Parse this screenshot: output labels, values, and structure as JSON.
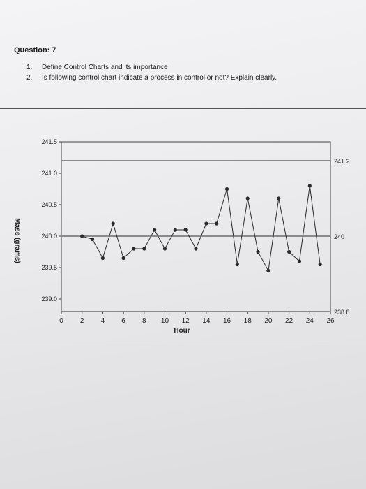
{
  "question": {
    "title": "Question: 7",
    "items": [
      {
        "num": "1.",
        "text": "Define Control Charts and its importance"
      },
      {
        "num": "2.",
        "text": "Is following control chart indicate a process in control or not? Explain clearly."
      }
    ]
  },
  "chart_data": {
    "type": "line",
    "title": "",
    "xlabel": "Hour",
    "ylabel": "Mass (grams)",
    "xlim": [
      0,
      26
    ],
    "ylim": [
      238.8,
      241.5
    ],
    "x_ticks": [
      0,
      2,
      4,
      6,
      8,
      10,
      12,
      14,
      16,
      18,
      20,
      22,
      24,
      26
    ],
    "y_ticks": [
      {
        "value": 239.0,
        "label": "239.0"
      },
      {
        "value": 239.5,
        "label": "239.5"
      },
      {
        "value": 240.0,
        "label": "240.0"
      },
      {
        "value": 240.5,
        "label": "240.5"
      },
      {
        "value": 241.0,
        "label": "241.0"
      },
      {
        "value": 241.5,
        "label": "241.5"
      }
    ],
    "control_lines": [
      {
        "value": 241.2,
        "label": "241.2"
      },
      {
        "value": 240.0,
        "label": "240"
      },
      {
        "value": 238.8,
        "label": "238.8"
      }
    ],
    "series": [
      {
        "x": [
          2,
          3,
          4,
          5,
          6,
          7,
          8,
          9,
          10,
          11,
          12,
          13,
          14,
          15,
          16,
          17,
          18,
          19,
          20,
          21,
          22,
          23,
          24,
          25
        ],
        "values": [
          240.0,
          239.95,
          239.65,
          240.2,
          239.65,
          239.8,
          239.8,
          240.1,
          239.8,
          240.1,
          240.1,
          239.8,
          240.2,
          240.2,
          240.75,
          239.55,
          240.6,
          239.75,
          239.45,
          240.6,
          239.75,
          239.6,
          240.8,
          239.55
        ]
      }
    ],
    "colors": {
      "data": "#2a2a2a",
      "control": "#8a8a8a"
    }
  }
}
